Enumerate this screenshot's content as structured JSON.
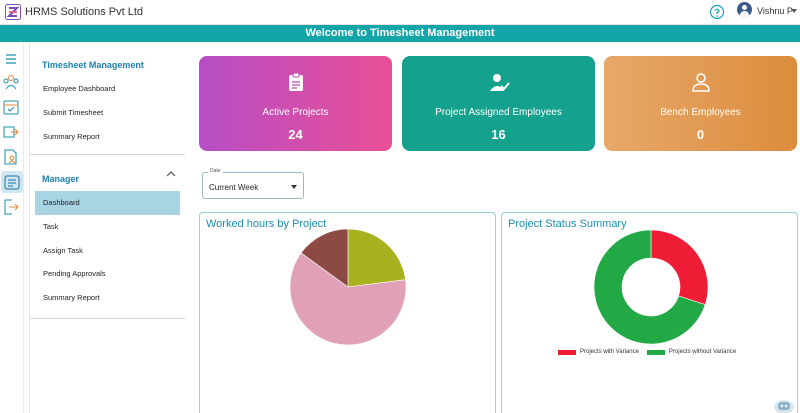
{
  "header": {
    "company": "HRMS Solutions Pvt Ltd",
    "user": "Vishnu P"
  },
  "banner": {
    "title": "Welcome to Timesheet Management"
  },
  "sidebar": {
    "timesheet_section": "Timesheet Management",
    "timesheet_items": [
      {
        "label": "Employee Dashboard"
      },
      {
        "label": "Submit Timesheet"
      },
      {
        "label": "Summary Report"
      }
    ],
    "manager_section": "Manager",
    "manager_items": [
      {
        "label": "Dashboard",
        "active": true
      },
      {
        "label": "Task"
      },
      {
        "label": "Assign Task"
      },
      {
        "label": "Pending Approvals"
      },
      {
        "label": "Summary Report"
      }
    ]
  },
  "rail_icons": [
    "menu-icon",
    "team-icon",
    "calendar-check-icon",
    "transfer-icon",
    "document-user-icon",
    "timesheet-calendar-icon",
    "logout-icon"
  ],
  "cards": [
    {
      "label": "Active Projects",
      "value": "24",
      "icon": "clipboard-icon"
    },
    {
      "label": "Project Assigned Employees",
      "value": "16",
      "icon": "user-check-icon"
    },
    {
      "label": "Bench Employees",
      "value": "0",
      "icon": "user-icon"
    }
  ],
  "filter": {
    "legend": "Date",
    "value": "Current Week"
  },
  "chart_data": [
    {
      "type": "pie",
      "title": "Worked hours by Project",
      "values": [
        23,
        62,
        15
      ],
      "colors": [
        "#a8b21e",
        "#dfa0b8",
        "#8d4a45"
      ]
    },
    {
      "type": "pie",
      "title": "Project Status Summary",
      "donut": true,
      "categories": [
        "Projects with Variance",
        "Projects without Variance"
      ],
      "values": [
        30,
        70
      ],
      "colors": [
        "#ee1c34",
        "#22a844"
      ],
      "legend": "bottom"
    }
  ]
}
